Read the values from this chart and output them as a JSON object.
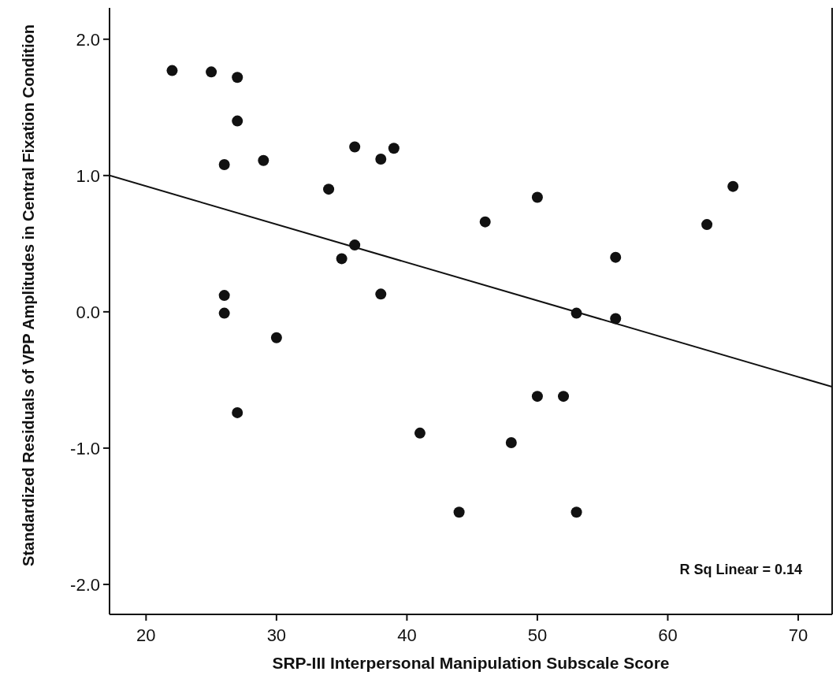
{
  "chart_data": {
    "type": "scatter",
    "xlabel": "SRP-III Interpersonal Manipulation Subscale Score",
    "ylabel": "Standardized Residuals of VPP Amplitudes in Central Fixation Condition",
    "xlim": [
      17.2,
      72.6
    ],
    "ylim": [
      -2.22,
      2.23
    ],
    "xticks": [
      20,
      30,
      40,
      50,
      60,
      70
    ],
    "yticks": [
      {
        "value": -2,
        "label": "-2.0"
      },
      {
        "value": -1,
        "label": "-1.0"
      },
      {
        "value": 0,
        "label": "0.0"
      },
      {
        "value": 1,
        "label": "1.0"
      },
      {
        "value": 2,
        "label": "2.0"
      }
    ],
    "grid": false,
    "legend": false,
    "marker": "circle",
    "annotations": [
      "R Sq Linear = 0.14"
    ],
    "series": [
      {
        "color": "#111111",
        "x": [
          22,
          25,
          27,
          27,
          26,
          29,
          26,
          26,
          30,
          27,
          34,
          36,
          38,
          39,
          35,
          36,
          38,
          41,
          44,
          46,
          48,
          50,
          50,
          52,
          53,
          53,
          56,
          56,
          63,
          65
        ],
        "values": [
          1.77,
          1.76,
          1.72,
          1.4,
          1.08,
          1.11,
          0.12,
          -0.01,
          -0.19,
          -0.74,
          0.9,
          1.21,
          1.12,
          1.2,
          0.39,
          0.49,
          0.13,
          -0.89,
          -1.47,
          0.66,
          -0.96,
          0.84,
          -0.62,
          -0.62,
          -0.01,
          -1.47,
          0.4,
          -0.05,
          0.64,
          0.92
        ]
      },
      {
        "type": "line",
        "color": "#111111",
        "marker": "none",
        "x": [
          17.2,
          72.6
        ],
        "values": [
          1.0,
          -0.55
        ]
      }
    ]
  }
}
